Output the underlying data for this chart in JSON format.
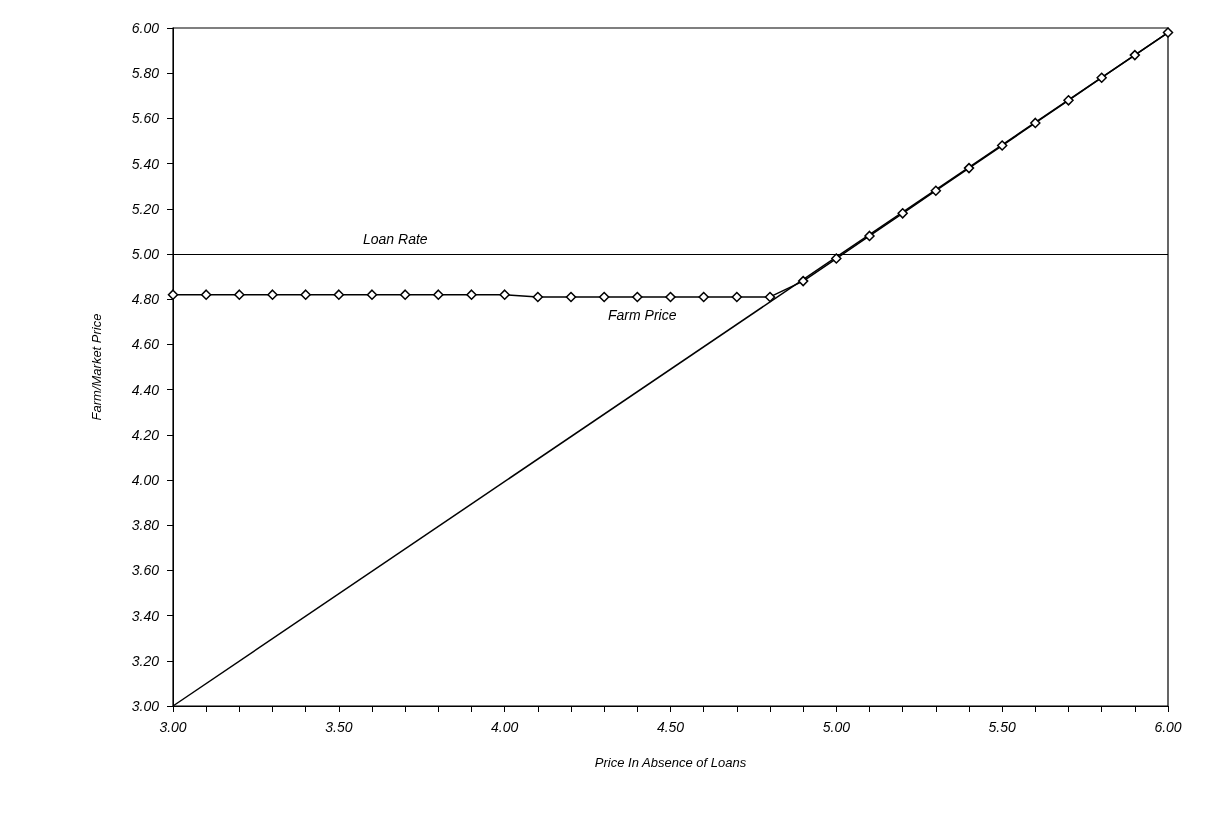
{
  "chart_data": {
    "type": "line",
    "xlabel": "Price In Absence of Loans",
    "ylabel": "Farm/Market Price",
    "xlim": [
      3,
      6
    ],
    "ylim": [
      3,
      6
    ],
    "xticks": [
      {
        "value": 3,
        "label": "3.00"
      },
      {
        "value": 3.1,
        "label": null
      },
      {
        "value": 3.2,
        "label": null
      },
      {
        "value": 3.3,
        "label": null
      },
      {
        "value": 3.4,
        "label": null
      },
      {
        "value": 3.5,
        "label": "3.50"
      },
      {
        "value": 3.6,
        "label": null
      },
      {
        "value": 3.7,
        "label": null
      },
      {
        "value": 3.8,
        "label": null
      },
      {
        "value": 3.9,
        "label": null
      },
      {
        "value": 4,
        "label": "4.00"
      },
      {
        "value": 4.1,
        "label": null
      },
      {
        "value": 4.2,
        "label": null
      },
      {
        "value": 4.3,
        "label": null
      },
      {
        "value": 4.4,
        "label": null
      },
      {
        "value": 4.5,
        "label": "4.50"
      },
      {
        "value": 4.6,
        "label": null
      },
      {
        "value": 4.7,
        "label": null
      },
      {
        "value": 4.8,
        "label": null
      },
      {
        "value": 4.9,
        "label": null
      },
      {
        "value": 5,
        "label": "5.00"
      },
      {
        "value": 5.1,
        "label": null
      },
      {
        "value": 5.2,
        "label": null
      },
      {
        "value": 5.3,
        "label": null
      },
      {
        "value": 5.4,
        "label": null
      },
      {
        "value": 5.5,
        "label": "5.50"
      },
      {
        "value": 5.6,
        "label": null
      },
      {
        "value": 5.7,
        "label": null
      },
      {
        "value": 5.8,
        "label": null
      },
      {
        "value": 5.9,
        "label": null
      },
      {
        "value": 6,
        "label": "6.00"
      }
    ],
    "yticks": [
      {
        "value": 3,
        "label": "3.00"
      },
      {
        "value": 3.2,
        "label": "3.20"
      },
      {
        "value": 3.4,
        "label": "3.40"
      },
      {
        "value": 3.6,
        "label": "3.60"
      },
      {
        "value": 3.8,
        "label": "3.80"
      },
      {
        "value": 4,
        "label": "4.00"
      },
      {
        "value": 4.2,
        "label": "4.20"
      },
      {
        "value": 4.4,
        "label": "4.40"
      },
      {
        "value": 4.6,
        "label": "4.60"
      },
      {
        "value": 4.8,
        "label": "4.80"
      },
      {
        "value": 5,
        "label": "5.00"
      },
      {
        "value": 5.2,
        "label": "5.20"
      },
      {
        "value": 5.4,
        "label": "5.40"
      },
      {
        "value": 5.6,
        "label": "5.60"
      },
      {
        "value": 5.8,
        "label": "5.80"
      },
      {
        "value": 6,
        "label": "6.00"
      }
    ],
    "grid": false,
    "line_style": "solid",
    "series": [
      {
        "color": "#000000",
        "x": [
          3,
          6
        ],
        "values": [
          3,
          5.98
        ]
      },
      {
        "color": "#000000",
        "marker": "diamond",
        "x": [
          3,
          3.1,
          3.2,
          3.3,
          3.4,
          3.5,
          3.6,
          3.7,
          3.8,
          3.9,
          4,
          4.1,
          4.2,
          4.3,
          4.4,
          4.5,
          4.6,
          4.7,
          4.8,
          4.9,
          5,
          5.1,
          5.2,
          5.3,
          5.4,
          5.5,
          5.6,
          5.7,
          5.8,
          5.9,
          6
        ],
        "values": [
          4.82,
          4.82,
          4.82,
          4.82,
          4.82,
          4.82,
          4.82,
          4.82,
          4.82,
          4.82,
          4.82,
          4.81,
          4.81,
          4.81,
          4.81,
          4.81,
          4.81,
          4.81,
          4.81,
          4.88,
          4.98,
          5.08,
          5.18,
          5.28,
          5.38,
          5.48,
          5.58,
          5.68,
          5.78,
          5.88,
          5.98
        ]
      }
    ],
    "ref_lines": [
      {
        "axis": "y",
        "value": 5,
        "label": "Loan Rate",
        "color": "#000000"
      }
    ],
    "annotations": [
      "Farm Price"
    ]
  }
}
